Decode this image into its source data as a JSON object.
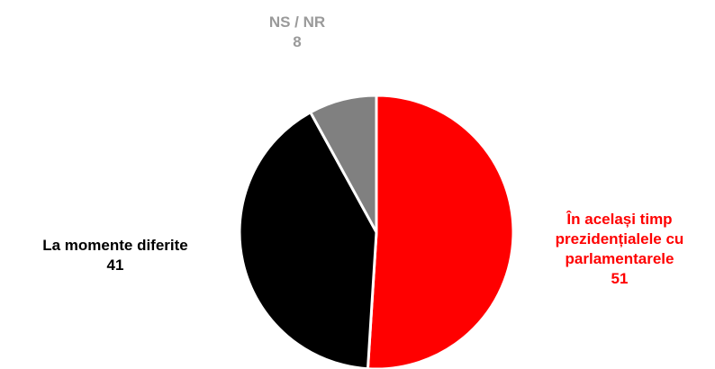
{
  "chart_data": {
    "type": "pie",
    "categories": [
      "În același timp prezidențialele cu parlamentarele",
      "La momente diferite",
      "NS / NR"
    ],
    "values": [
      51,
      41,
      8
    ],
    "colors": [
      "#ff0000",
      "#000000",
      "#808080"
    ],
    "label_colors": [
      "#ff0000",
      "#000000",
      "#9a9a9a"
    ]
  }
}
